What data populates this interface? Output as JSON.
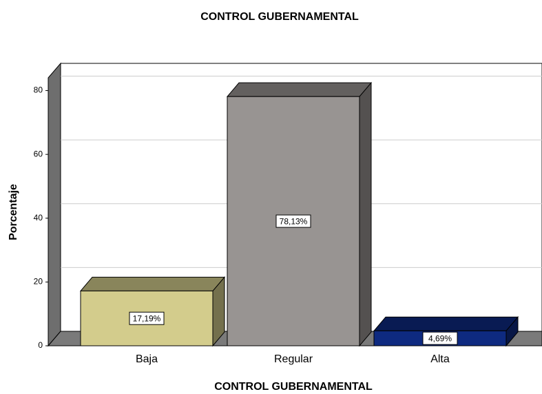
{
  "chart_data": {
    "type": "bar3d",
    "title": "CONTROL GUBERNAMENTAL",
    "x_label": "CONTROL GUBERNAMENTAL",
    "y_label": "Porcentaje",
    "categories": [
      "Baja",
      "Regular",
      "Alta"
    ],
    "values": [
      17.19,
      78.13,
      4.69
    ],
    "value_labels": [
      "17,19%",
      "78,13%",
      "4,69%"
    ],
    "colors": [
      "#d3cc8c",
      "#989492",
      "#0e2a80"
    ],
    "ylim": [
      0,
      84
    ],
    "yticks": [
      0,
      20,
      40,
      60,
      80
    ],
    "grid": true
  }
}
